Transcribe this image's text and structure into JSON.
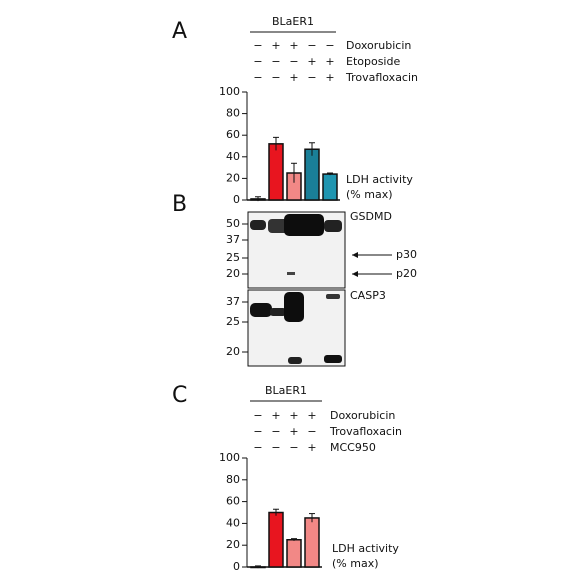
{
  "panel_labels": [
    "A",
    "B",
    "C"
  ],
  "treatment_tables": [
    {
      "cell_line": "BLaER1",
      "rows": [
        {
          "name": "Doxorubicin",
          "color": "#e3202a",
          "signs": [
            "−",
            "+",
            "+",
            "−",
            "−"
          ]
        },
        {
          "name": "Etoposide",
          "color": "#1b8ea6",
          "signs": [
            "−",
            "−",
            "−",
            "+",
            "+"
          ]
        },
        {
          "name": "Trovafloxacin",
          "color": "#111111",
          "signs": [
            "−",
            "−",
            "+",
            "−",
            "+"
          ]
        }
      ]
    },
    {
      "cell_line": "BLaER1",
      "rows": [
        {
          "name": "Doxorubicin",
          "color": "#e3202a",
          "signs": [
            "−",
            "+",
            "+",
            "+"
          ]
        },
        {
          "name": "Trovafloxacin",
          "color": "#111111",
          "signs": [
            "−",
            "−",
            "+",
            "−"
          ]
        },
        {
          "name": "MCC950",
          "color": "#111111",
          "signs": [
            "−",
            "−",
            "−",
            "+"
          ]
        }
      ]
    }
  ],
  "blots": [
    {
      "target": "GSDMD",
      "ladder": [
        "50",
        "37",
        "25",
        "20"
      ],
      "arrows": [
        "p30",
        "p20"
      ]
    },
    {
      "target": "CASP3",
      "ladder": [
        "37",
        "25",
        "20"
      ],
      "arrows": []
    }
  ],
  "chart_data": [
    {
      "type": "bar",
      "ylabel": [
        "LDH activity",
        "(% max)"
      ],
      "values": [
        1,
        52,
        25,
        47,
        24
      ],
      "errors": [
        2,
        6,
        9,
        6,
        1
      ],
      "colors": [
        "#ffffff",
        "#e8151f",
        "#f28886",
        "#1a7f98",
        "#1f95b0"
      ],
      "ylim": [
        0,
        100
      ],
      "yticks": [
        0,
        20,
        40,
        60,
        80,
        100
      ]
    },
    {
      "type": "bar",
      "ylabel": [
        "LDH activity",
        "(% max)"
      ],
      "values": [
        0,
        50,
        25,
        45
      ],
      "errors": [
        1,
        3,
        1,
        4
      ],
      "colors": [
        "#ffffff",
        "#e8151f",
        "#f28886",
        "#f28886"
      ],
      "ylim": [
        0,
        100
      ],
      "yticks": [
        0,
        20,
        40,
        60,
        80,
        100
      ]
    }
  ]
}
